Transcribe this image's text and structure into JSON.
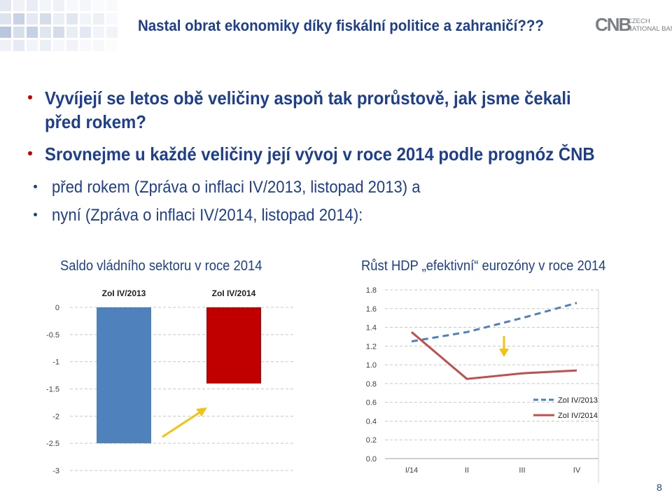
{
  "slide": {
    "title": "Nastal obrat ekonomiky díky fiskální politice a zahraničí???",
    "logo": {
      "mark": "CNB",
      "text_line1": "CZECH",
      "text_line2": "NATIONAL BANK"
    },
    "bullets": [
      "Vyvíjejí se letos obě veličiny aspoň tak prorůstově, jak jsme čekali před rokem?",
      "Srovnejme u každé veličiny její vývoj v roce 2014 podle prognóz ČNB"
    ],
    "sub_bullets": [
      "před rokem (Zpráva o inflaci IV/2013, listopad 2013) a",
      "nyní (Zpráva o inflaci IV/2014, listopad 2014):"
    ],
    "page_number": "8",
    "colors": {
      "title": "#1f3f8a",
      "bullet": "#c00000",
      "bar_2013": "#4f81bd",
      "bar_2014": "#c00000",
      "line_2013": "#4f81bd",
      "line_2014": "#c0504d",
      "arrow": "#f2c314"
    },
    "icons": [
      "increase-arrow-icon",
      "decrease-arrow-icon"
    ]
  },
  "chart_data": [
    {
      "type": "bar",
      "title": "Saldo vládního sektoru v roce 2014",
      "categories": [
        "ZoI IV/2013",
        "ZoI IV/2014"
      ],
      "values": [
        -2.5,
        -1.4
      ],
      "ylim": [
        -3,
        0
      ],
      "yticks": [
        0,
        -0.5,
        -1,
        -1.5,
        -2,
        -2.5,
        -3
      ],
      "grid": true,
      "annotation": "increase-arrow-icon"
    },
    {
      "type": "line",
      "title": "Růst HDP „efektivní“ eurozóny v roce 2014",
      "x": [
        "I/14",
        "II",
        "III",
        "IV"
      ],
      "ylim": [
        0,
        1.8
      ],
      "yticks": [
        "0.0",
        "0.2",
        "0.4",
        "0.6",
        "0.8",
        "1.0",
        "1.2",
        "1.4",
        "1.6",
        "1.8"
      ],
      "series": [
        {
          "name": "ZoI IV/2013",
          "values": [
            1.25,
            1.35,
            1.5,
            1.66
          ],
          "style": "dashed"
        },
        {
          "name": "ZoI IV/2014",
          "values": [
            1.35,
            0.85,
            0.91,
            0.94
          ],
          "style": "solid"
        }
      ],
      "legend": "right",
      "grid": true,
      "annotation": "decrease-arrow-icon"
    }
  ]
}
